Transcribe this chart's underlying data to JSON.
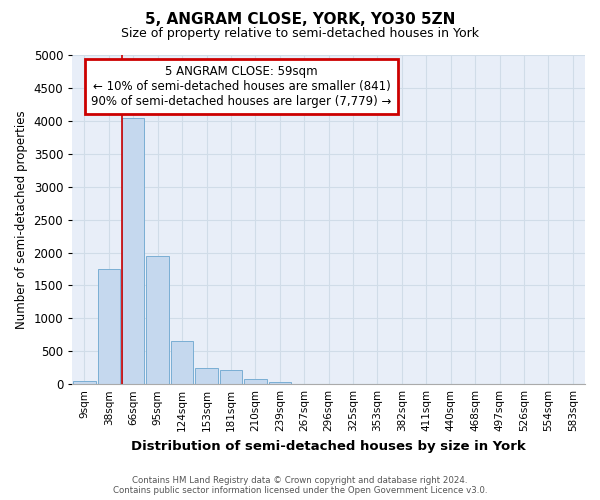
{
  "title": "5, ANGRAM CLOSE, YORK, YO30 5ZN",
  "subtitle": "Size of property relative to semi-detached houses in York",
  "xlabel": "Distribution of semi-detached houses by size in York",
  "ylabel": "Number of semi-detached properties",
  "footer1": "Contains HM Land Registry data © Crown copyright and database right 2024.",
  "footer2": "Contains public sector information licensed under the Open Government Licence v3.0.",
  "bar_labels": [
    "9sqm",
    "38sqm",
    "66sqm",
    "95sqm",
    "124sqm",
    "153sqm",
    "181sqm",
    "210sqm",
    "239sqm",
    "267sqm",
    "296sqm",
    "325sqm",
    "353sqm",
    "382sqm",
    "411sqm",
    "440sqm",
    "468sqm",
    "497sqm",
    "526sqm",
    "554sqm",
    "583sqm"
  ],
  "bar_values": [
    50,
    1750,
    4050,
    1950,
    650,
    240,
    220,
    75,
    40,
    0,
    0,
    0,
    0,
    0,
    0,
    0,
    0,
    0,
    0,
    0,
    0
  ],
  "bar_color": "#c5d8ee",
  "bar_edge_color": "#7aaed4",
  "grid_color": "#d0dce8",
  "background_color": "#e8eef8",
  "vline_x": 1.55,
  "vline_color": "#cc0000",
  "ann_line1": "5 ANGRAM CLOSE: 59sqm",
  "ann_line2": "← 10% of semi-detached houses are smaller (841)",
  "ann_line3": "90% of semi-detached houses are larger (7,779) →",
  "annotation_box_color": "#cc0000",
  "ylim": [
    0,
    5000
  ],
  "yticks": [
    0,
    500,
    1000,
    1500,
    2000,
    2500,
    3000,
    3500,
    4000,
    4500,
    5000
  ]
}
